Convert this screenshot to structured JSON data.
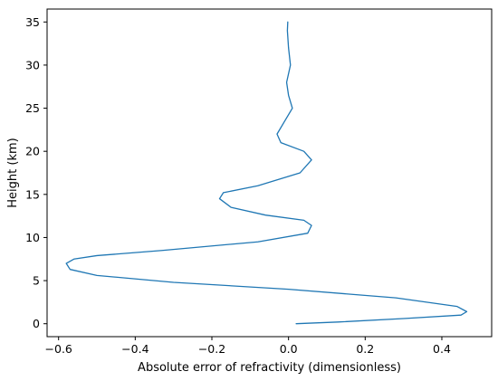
{
  "chart_data": {
    "type": "line",
    "title": "",
    "xlabel": "Absolute error of refractivity (dimensionless)",
    "ylabel": "Height (km)",
    "xlim": [
      -0.63,
      0.53
    ],
    "ylim": [
      -1.5,
      36.5
    ],
    "xticks": [
      -0.6,
      -0.4,
      -0.2,
      0.0,
      0.2,
      0.4
    ],
    "xtick_labels": [
      "−0.6",
      "−0.4",
      "−0.2",
      "0.0",
      "0.2",
      "0.4"
    ],
    "yticks": [
      0,
      5,
      10,
      15,
      20,
      25,
      30,
      35
    ],
    "ytick_labels": [
      "0",
      "5",
      "10",
      "15",
      "20",
      "25",
      "30",
      "35"
    ],
    "grid": false,
    "line_color": "#1f77b4",
    "series": [
      {
        "x": [
          0.02,
          0.13,
          0.3,
          0.45,
          0.465,
          0.44,
          0.28,
          0.0,
          -0.3,
          -0.5,
          -0.57,
          -0.58,
          -0.56,
          -0.5,
          -0.33,
          -0.08,
          0.05,
          0.06,
          0.04,
          -0.06,
          -0.15,
          -0.18,
          -0.17,
          -0.08,
          0.03,
          0.06,
          0.04,
          -0.02,
          -0.03,
          -0.01,
          0.01,
          0.0,
          -0.005,
          0.005,
          0.0,
          -0.003,
          -0.002
        ],
        "y": [
          0.0,
          0.2,
          0.6,
          1.0,
          1.4,
          2.0,
          3.0,
          4.0,
          4.8,
          5.6,
          6.3,
          7.0,
          7.5,
          7.9,
          8.5,
          9.5,
          10.5,
          11.4,
          12.0,
          12.6,
          13.5,
          14.5,
          15.2,
          16.0,
          17.5,
          19.0,
          20.0,
          21.0,
          22.0,
          23.5,
          25.0,
          26.5,
          28.0,
          30.0,
          32.0,
          34.0,
          35.0
        ]
      }
    ]
  }
}
